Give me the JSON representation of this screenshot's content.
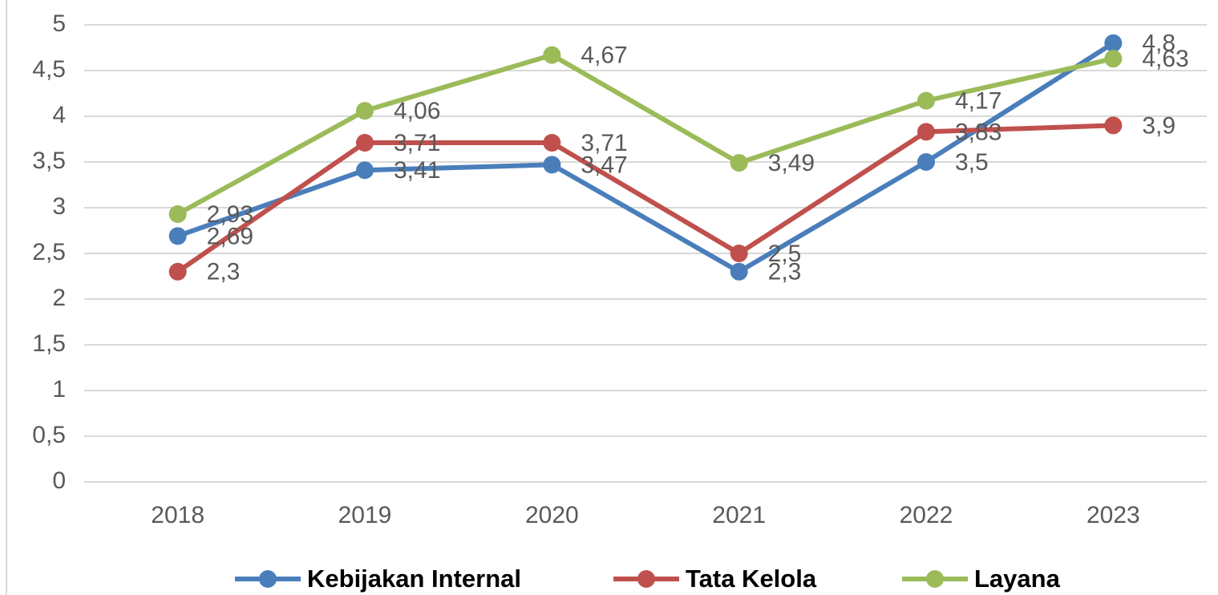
{
  "chart_data": {
    "type": "line",
    "categories": [
      "2018",
      "2019",
      "2020",
      "2021",
      "2022",
      "2023"
    ],
    "series": [
      {
        "name": "Kebijakan Internal",
        "color": "#4a7ebb",
        "values": [
          2.69,
          3.41,
          3.47,
          2.3,
          3.5,
          4.8
        ],
        "value_labels": [
          "2,69",
          "3,41",
          "3,47",
          "2,3",
          "3,5",
          "4,8"
        ]
      },
      {
        "name": "Tata Kelola",
        "color": "#c0504d",
        "values": [
          2.3,
          3.71,
          3.71,
          2.5,
          3.83,
          3.9
        ],
        "value_labels": [
          "2,3",
          "3,71",
          "3,71",
          "2,5",
          "3,83",
          "3,9"
        ]
      },
      {
        "name": "Layana",
        "color": "#9bbb59",
        "values": [
          2.93,
          4.06,
          4.67,
          3.49,
          4.17,
          4.63
        ],
        "value_labels": [
          "2,93",
          "4,06",
          "4,67",
          "3,49",
          "4,17",
          "4,63"
        ]
      }
    ],
    "ylim": [
      0,
      5
    ],
    "yticks": [
      0,
      {
        "value": 0.5,
        "label": "0,5"
      },
      1,
      {
        "value": 1.5,
        "label": "1,5"
      },
      2,
      {
        "value": 2.5,
        "label": "2,5"
      },
      3,
      {
        "value": 3.5,
        "label": "3,5"
      },
      4,
      {
        "value": 4.5,
        "label": "4,5"
      },
      5
    ],
    "grid": true,
    "legend": "bottom"
  }
}
